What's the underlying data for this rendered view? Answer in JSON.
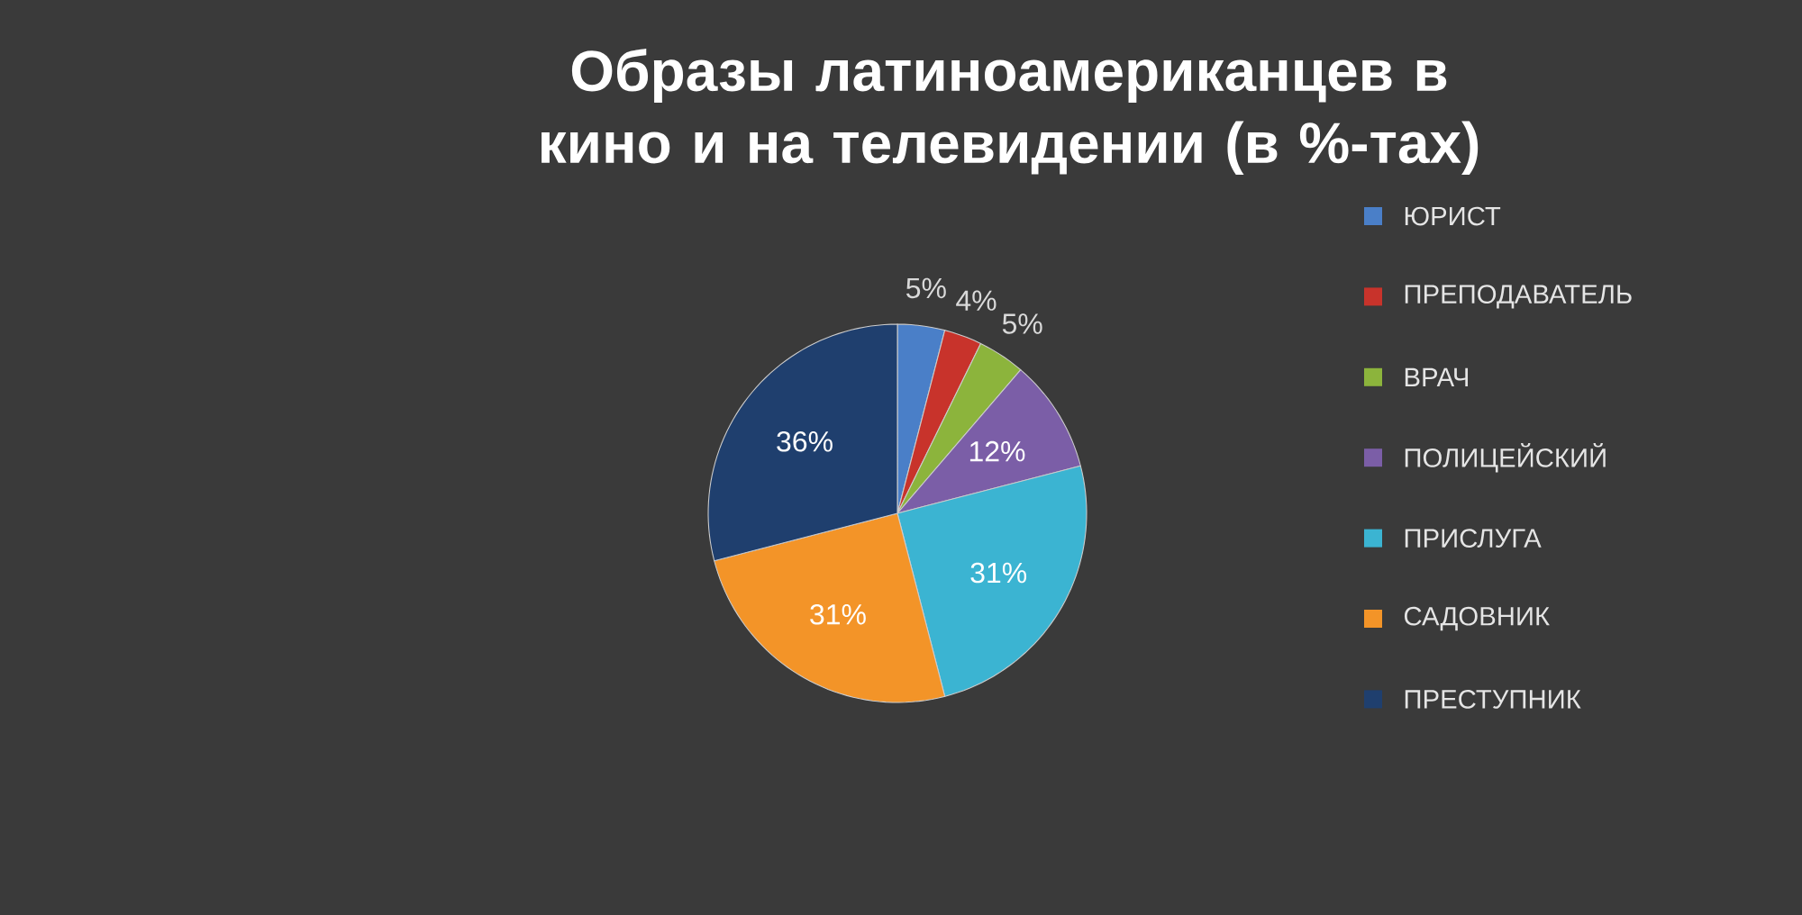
{
  "chart_data": {
    "type": "pie",
    "title": "Образы латиноамериканцев в кино и на телевидении (в %-тах)",
    "categories": [
      "ЮРИСТ",
      "ПРЕПОДАВАТЕЛЬ",
      "ВРАЧ",
      "ПОЛИЦЕЙСКИЙ",
      "ПРИСЛУГА",
      "САДОВНИК",
      "ПРЕСТУПНИК"
    ],
    "values": [
      5,
      4,
      5,
      12,
      31,
      31,
      36
    ],
    "value_labels": [
      "5%",
      "4%",
      "5%",
      "12%",
      "31%",
      "31%",
      "36%"
    ],
    "colors": [
      "#4a7fc8",
      "#c8332b",
      "#8cb43c",
      "#7b5ea7",
      "#3bb4d2",
      "#f39428",
      "#1f3f6e"
    ],
    "legend": "right"
  }
}
